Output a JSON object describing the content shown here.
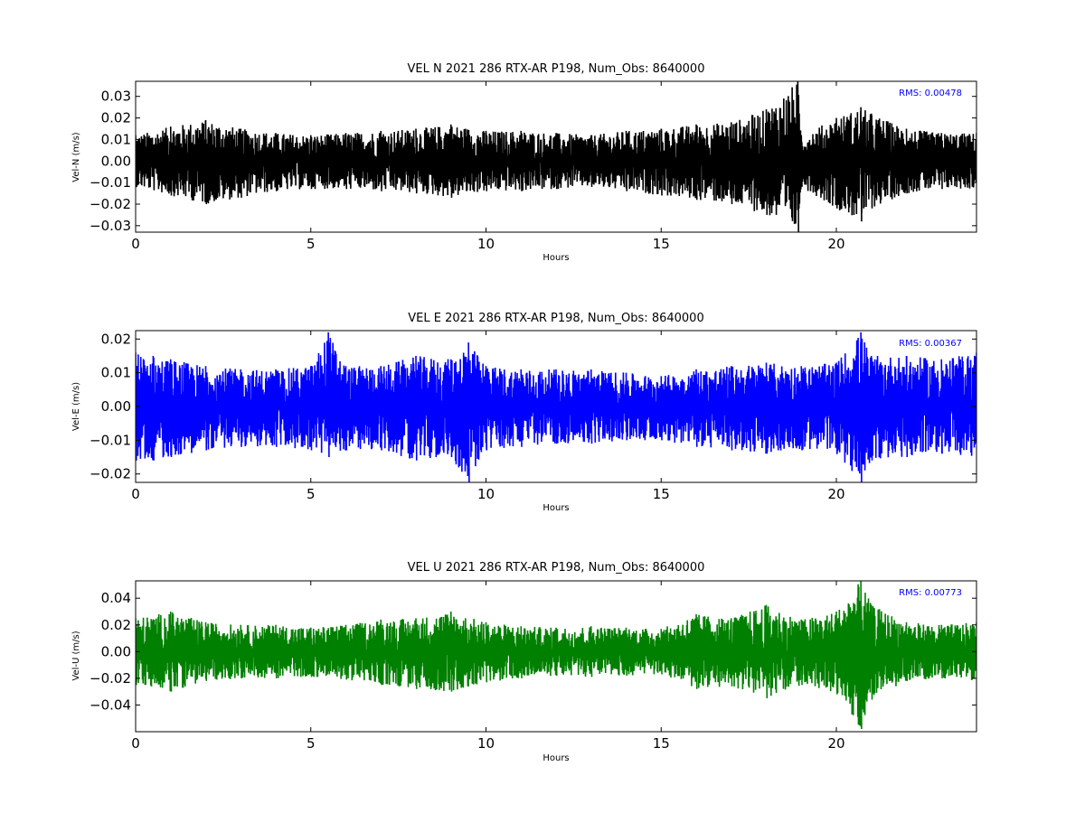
{
  "chart_data": [
    {
      "type": "line",
      "title": "VEL N 2021 286 RTX-AR  P198, Num_Obs: 8640000",
      "xlabel": "Hours",
      "ylabel": "Vel-N (m/s)",
      "xlim": [
        0,
        24
      ],
      "ylim": [
        -0.033,
        0.037
      ],
      "x_ticks": [
        0,
        5,
        10,
        15,
        20
      ],
      "y_ticks": [
        -0.03,
        -0.02,
        -0.01,
        0.0,
        0.01,
        0.02,
        0.03
      ],
      "y_tick_labels": [
        "−0.03",
        "−0.02",
        "−0.01",
        "0.00",
        "0.01",
        "0.02",
        "0.03"
      ],
      "x_tick_labels": [
        "0",
        "5",
        "10",
        "15",
        "20"
      ],
      "annotation": "RMS:  0.00478",
      "annotation_color": "#0000ff",
      "line_color": "#000000",
      "series": [
        {
          "name": "",
          "x": [
            0,
            1,
            2,
            3,
            4,
            5,
            6,
            7,
            8,
            9,
            10,
            11,
            12,
            13,
            14,
            15,
            16,
            17,
            18,
            18.9,
            19,
            20,
            20.7,
            21,
            22,
            23,
            24
          ],
          "y_upper": [
            0.012,
            0.016,
            0.019,
            0.015,
            0.013,
            0.012,
            0.013,
            0.014,
            0.015,
            0.017,
            0.014,
            0.014,
            0.013,
            0.012,
            0.014,
            0.015,
            0.017,
            0.018,
            0.024,
            0.037,
            0.012,
            0.02,
            0.025,
            0.022,
            0.015,
            0.013,
            0.013
          ],
          "y_lower": [
            -0.012,
            -0.016,
            -0.02,
            -0.017,
            -0.014,
            -0.013,
            -0.013,
            -0.014,
            -0.015,
            -0.017,
            -0.014,
            -0.014,
            -0.013,
            -0.012,
            -0.014,
            -0.016,
            -0.018,
            -0.02,
            -0.025,
            -0.033,
            -0.012,
            -0.022,
            -0.028,
            -0.022,
            -0.015,
            -0.013,
            -0.013
          ]
        }
      ],
      "rms": 0.00478
    },
    {
      "type": "line",
      "title": "VEL E 2021 286 RTX-AR  P198, Num_Obs: 8640000",
      "xlabel": "Hours",
      "ylabel": "Vel-E (m/s)",
      "xlim": [
        0,
        24
      ],
      "ylim": [
        -0.0225,
        0.0225
      ],
      "x_ticks": [
        0,
        5,
        10,
        15,
        20
      ],
      "y_ticks": [
        -0.02,
        -0.01,
        0.0,
        0.01,
        0.02
      ],
      "y_tick_labels": [
        "−0.02",
        "−0.01",
        "0.00",
        "0.01",
        "0.02"
      ],
      "x_tick_labels": [
        "0",
        "5",
        "10",
        "15",
        "20"
      ],
      "annotation": "RMS:  0.00367",
      "annotation_color": "#0000ff",
      "line_color": "#0000ff",
      "series": [
        {
          "name": "",
          "x": [
            0,
            0.5,
            1,
            2,
            3,
            4,
            5,
            5.5,
            6,
            7,
            8,
            9,
            9.5,
            10,
            11,
            12,
            13,
            14,
            15,
            16,
            17,
            18,
            19,
            20,
            20.7,
            21,
            22,
            23,
            24
          ],
          "y_upper": [
            0.016,
            0.015,
            0.014,
            0.012,
            0.011,
            0.011,
            0.012,
            0.022,
            0.012,
            0.012,
            0.015,
            0.014,
            0.019,
            0.012,
            0.011,
            0.011,
            0.011,
            0.01,
            0.009,
            0.011,
            0.012,
            0.013,
            0.012,
            0.013,
            0.022,
            0.015,
            0.015,
            0.014,
            0.016
          ],
          "y_lower": [
            -0.016,
            -0.016,
            -0.015,
            -0.013,
            -0.012,
            -0.012,
            -0.013,
            -0.015,
            -0.013,
            -0.013,
            -0.016,
            -0.015,
            -0.0225,
            -0.013,
            -0.012,
            -0.011,
            -0.011,
            -0.01,
            -0.01,
            -0.012,
            -0.013,
            -0.014,
            -0.013,
            -0.014,
            -0.0225,
            -0.016,
            -0.015,
            -0.014,
            -0.016
          ]
        }
      ],
      "rms": 0.00367
    },
    {
      "type": "line",
      "title": "VEL U 2021 286 RTX-AR  P198, Num_Obs: 8640000",
      "xlabel": "Hours",
      "ylabel": "Vel-U (m/s)",
      "xlim": [
        0,
        24
      ],
      "ylim": [
        -0.06,
        0.053
      ],
      "x_ticks": [
        0,
        5,
        10,
        15,
        20
      ],
      "y_ticks": [
        -0.04,
        -0.02,
        0.0,
        0.02,
        0.04
      ],
      "y_tick_labels": [
        "−0.04",
        "−0.02",
        "0.00",
        "0.02",
        "0.04"
      ],
      "x_tick_labels": [
        "0",
        "5",
        "10",
        "15",
        "20"
      ],
      "annotation": "RMS:  0.00773",
      "annotation_color": "#0000ff",
      "line_color": "#008000",
      "series": [
        {
          "name": "",
          "x": [
            0,
            1,
            2,
            3,
            4,
            5,
            6,
            7,
            8,
            9,
            10,
            11,
            12,
            13,
            14,
            15,
            16,
            17,
            18,
            19,
            20,
            20.7,
            21,
            22,
            23,
            24
          ],
          "y_upper": [
            0.025,
            0.03,
            0.022,
            0.02,
            0.02,
            0.018,
            0.02,
            0.024,
            0.025,
            0.03,
            0.022,
            0.019,
            0.018,
            0.019,
            0.018,
            0.017,
            0.028,
            0.025,
            0.035,
            0.024,
            0.03,
            0.053,
            0.035,
            0.022,
            0.02,
            0.022
          ],
          "y_lower": [
            -0.025,
            -0.03,
            -0.022,
            -0.02,
            -0.02,
            -0.019,
            -0.021,
            -0.025,
            -0.028,
            -0.03,
            -0.023,
            -0.02,
            -0.018,
            -0.019,
            -0.018,
            -0.017,
            -0.028,
            -0.026,
            -0.035,
            -0.025,
            -0.032,
            -0.058,
            -0.036,
            -0.022,
            -0.02,
            -0.022
          ]
        }
      ],
      "rms": 0.00773
    }
  ]
}
